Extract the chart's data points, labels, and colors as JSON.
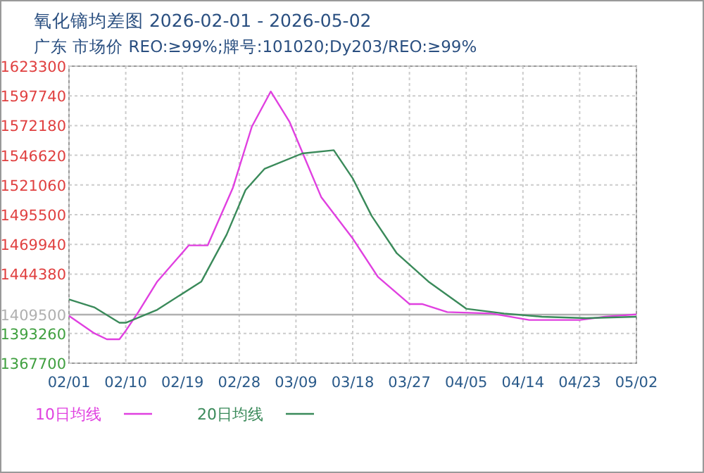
{
  "chart_data": {
    "type": "line",
    "title": "氧化镝均差图 2026-02-01 - 2026-05-02",
    "subtitle": "广东 市场价 REO:≥99%;牌号:101020;Dy203/REO:≥99%",
    "series": [
      {
        "name": "10日均线",
        "color": "#e040e0",
        "x": [
          "2026-02-01",
          "2026-02-05",
          "2026-02-07",
          "2026-02-09",
          "2026-02-10",
          "2026-02-12",
          "2026-02-15",
          "2026-02-20",
          "2026-02-23",
          "2026-02-27",
          "2026-03-02",
          "2026-03-05",
          "2026-03-08",
          "2026-03-13",
          "2026-03-18",
          "2026-03-22",
          "2026-03-27",
          "2026-03-29",
          "2026-04-02",
          "2026-04-09",
          "2026-04-15",
          "2026-04-23",
          "2026-04-27",
          "2026-05-02"
        ],
        "values": [
          1408500,
          1393500,
          1388300,
          1388300,
          1395600,
          1411700,
          1438000,
          1469100,
          1469100,
          1518700,
          1571200,
          1601500,
          1575200,
          1510700,
          1475000,
          1442000,
          1418600,
          1418600,
          1411700,
          1410500,
          1404900,
          1404900,
          1407700,
          1409700
        ]
      },
      {
        "name": "20日均线",
        "color": "#3a8a5a",
        "x": [
          "2026-02-01",
          "2026-02-05",
          "2026-02-09",
          "2026-02-10",
          "2026-02-15",
          "2026-02-22",
          "2026-02-26",
          "2026-03-01",
          "2026-03-04",
          "2026-03-10",
          "2026-03-15",
          "2026-03-18",
          "2026-03-21",
          "2026-03-25",
          "2026-03-30",
          "2026-04-05",
          "2026-04-11",
          "2026-04-17",
          "2026-04-24",
          "2026-05-02"
        ],
        "values": [
          1422600,
          1415800,
          1402500,
          1402500,
          1413700,
          1438000,
          1478300,
          1516700,
          1534900,
          1548200,
          1551000,
          1526800,
          1494500,
          1462200,
          1438000,
          1414600,
          1410500,
          1407700,
          1406500,
          1407700
        ]
      }
    ],
    "xlim": [
      "2026-02-01",
      "2026-05-02"
    ],
    "xticks": [
      {
        "value": "2026-02-01",
        "label": "02/01"
      },
      {
        "value": "2026-02-10",
        "label": "02/10"
      },
      {
        "value": "2026-02-19",
        "label": "02/19"
      },
      {
        "value": "2026-02-28",
        "label": "02/28"
      },
      {
        "value": "2026-03-09",
        "label": "03/09"
      },
      {
        "value": "2026-03-18",
        "label": "03/18"
      },
      {
        "value": "2026-03-27",
        "label": "03/27"
      },
      {
        "value": "2026-04-05",
        "label": "04/05"
      },
      {
        "value": "2026-04-14",
        "label": "04/14"
      },
      {
        "value": "2026-04-23",
        "label": "04/23"
      },
      {
        "value": "2026-05-02",
        "label": "05/02"
      }
    ],
    "ylim": [
      1367700,
      1623300
    ],
    "yticks": [
      1367700,
      1393260,
      1444380,
      1469940,
      1495500,
      1521060,
      1546620,
      1572180,
      1597740,
      1623300
    ],
    "ref_lines": [
      {
        "axis": "y",
        "value": 1409500,
        "label": "1409500",
        "color": "#b0b0b0"
      }
    ],
    "grid": true,
    "legend": "bottom left",
    "marker": "none",
    "line_style": "solid"
  }
}
